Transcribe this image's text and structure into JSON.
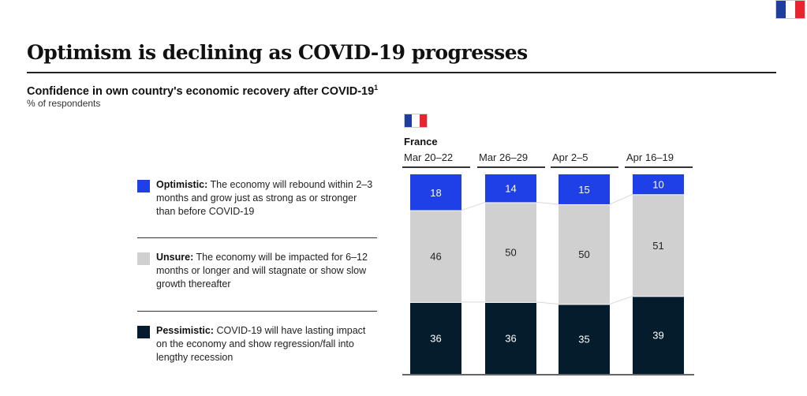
{
  "title": "Optimism is declining as COVID-19 progresses",
  "subtitle": "Confidence in own country's economic recovery after COVID-19",
  "subtitle_footnote": "1",
  "unit_note": "% of respondents",
  "country": "France",
  "flag_colors": [
    "#1d3e9e",
    "#ffffff",
    "#e8242f"
  ],
  "chart_data": {
    "type": "bar",
    "stacked": true,
    "normalized": true,
    "categories": [
      "Mar 20–22",
      "Mar 26–29",
      "Apr 2–5",
      "Apr 16–19"
    ],
    "series": [
      {
        "name": "Pessimistic",
        "color": "#051c2c",
        "label_color": "#ffffff",
        "values": [
          36,
          36,
          35,
          39
        ]
      },
      {
        "name": "Unsure",
        "color": "#d0d0d0",
        "label_color": "#222222",
        "values": [
          46,
          50,
          50,
          51
        ]
      },
      {
        "name": "Optimistic",
        "color": "#1f40e6",
        "label_color": "#ffffff",
        "values": [
          18,
          14,
          15,
          10
        ]
      }
    ],
    "ylim": [
      0,
      100
    ],
    "grid": false
  },
  "legend": [
    {
      "label": "Optimistic:",
      "text": " The economy will rebound within 2–3 months and grow just as strong as or stronger than before COVID-19",
      "color": "#1f40e6"
    },
    {
      "label": "Unsure:",
      "text": " The economy will be impacted for 6–12 months or longer and will stagnate or show slow growth thereafter",
      "color": "#d0d0d0"
    },
    {
      "label": "Pessimistic:",
      "text": " COVID-19 will have lasting impact on the economy and show regression/fall into lengthy recession",
      "color": "#051c2c"
    }
  ]
}
